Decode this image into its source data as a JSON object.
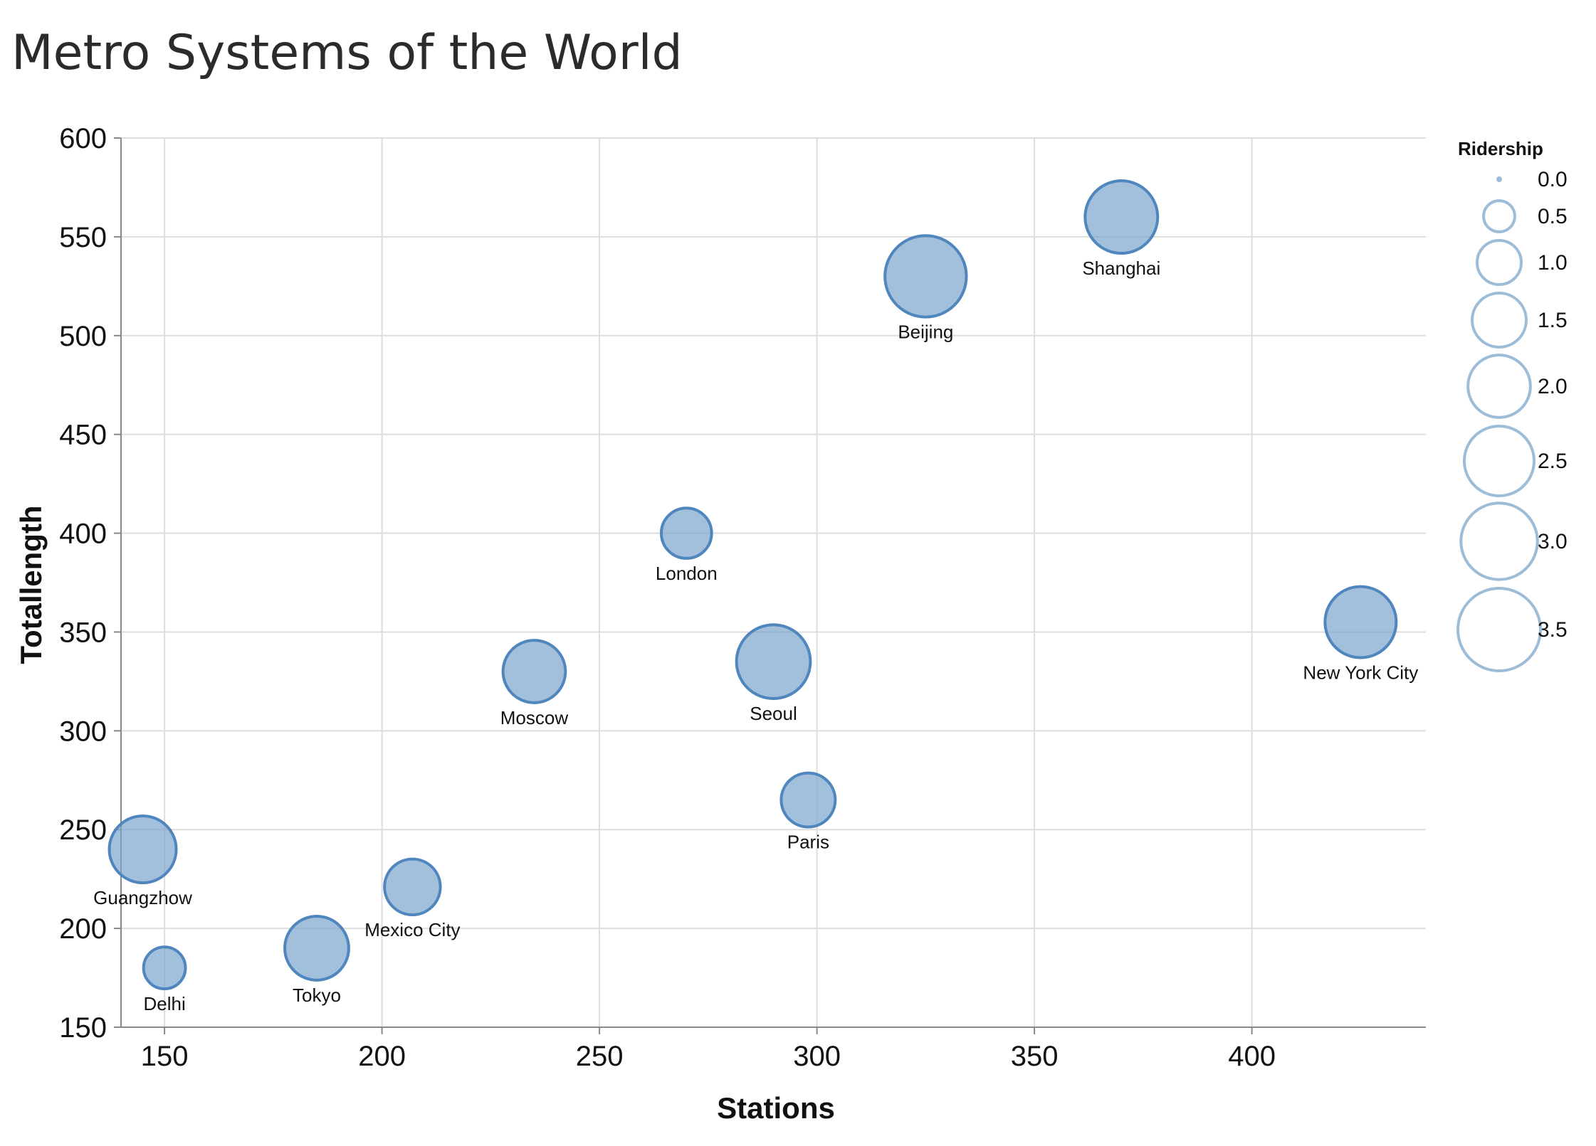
{
  "chart_data": {
    "type": "scatter",
    "title": "Metro Systems of the World",
    "xlabel": "Stations",
    "ylabel": "Totallength",
    "xlim": [
      140,
      440
    ],
    "ylim": [
      150,
      600
    ],
    "x_ticks": [
      150,
      200,
      250,
      300,
      350,
      400
    ],
    "y_ticks": [
      150,
      200,
      250,
      300,
      350,
      400,
      450,
      500,
      550,
      600
    ],
    "size_field": "Ridership",
    "grid": true,
    "legend": {
      "title": "Ridership",
      "position": "right",
      "values": [
        0.0,
        0.5,
        1.0,
        1.5,
        2.0,
        2.5,
        3.0,
        3.5
      ],
      "labels": [
        "0.0",
        "0.5",
        "1.0",
        "1.5",
        "2.0",
        "2.5",
        "3.0",
        "3.5"
      ]
    },
    "colors": {
      "fill": "#7ba4cc",
      "stroke": "#4f86bd",
      "legend_stroke": "#9dbcd8"
    },
    "points": [
      {
        "name": "Shanghai",
        "x": 370,
        "y": 560,
        "size": 2.7
      },
      {
        "name": "Beijing",
        "x": 325,
        "y": 530,
        "size": 3.4
      },
      {
        "name": "London",
        "x": 270,
        "y": 400,
        "size": 1.3
      },
      {
        "name": "New York City",
        "x": 425,
        "y": 355,
        "size": 2.6
      },
      {
        "name": "Moscow",
        "x": 235,
        "y": 330,
        "size": 2.0
      },
      {
        "name": "Seoul",
        "x": 290,
        "y": 335,
        "size": 2.8
      },
      {
        "name": "Paris",
        "x": 298,
        "y": 265,
        "size": 1.5
      },
      {
        "name": "Guangzhow",
        "x": 145,
        "y": 240,
        "size": 2.3
      },
      {
        "name": "Mexico City",
        "x": 207,
        "y": 221,
        "size": 1.6
      },
      {
        "name": "Tokyo",
        "x": 185,
        "y": 190,
        "size": 2.1
      },
      {
        "name": "Delhi",
        "x": 150,
        "y": 180,
        "size": 0.9
      }
    ]
  }
}
